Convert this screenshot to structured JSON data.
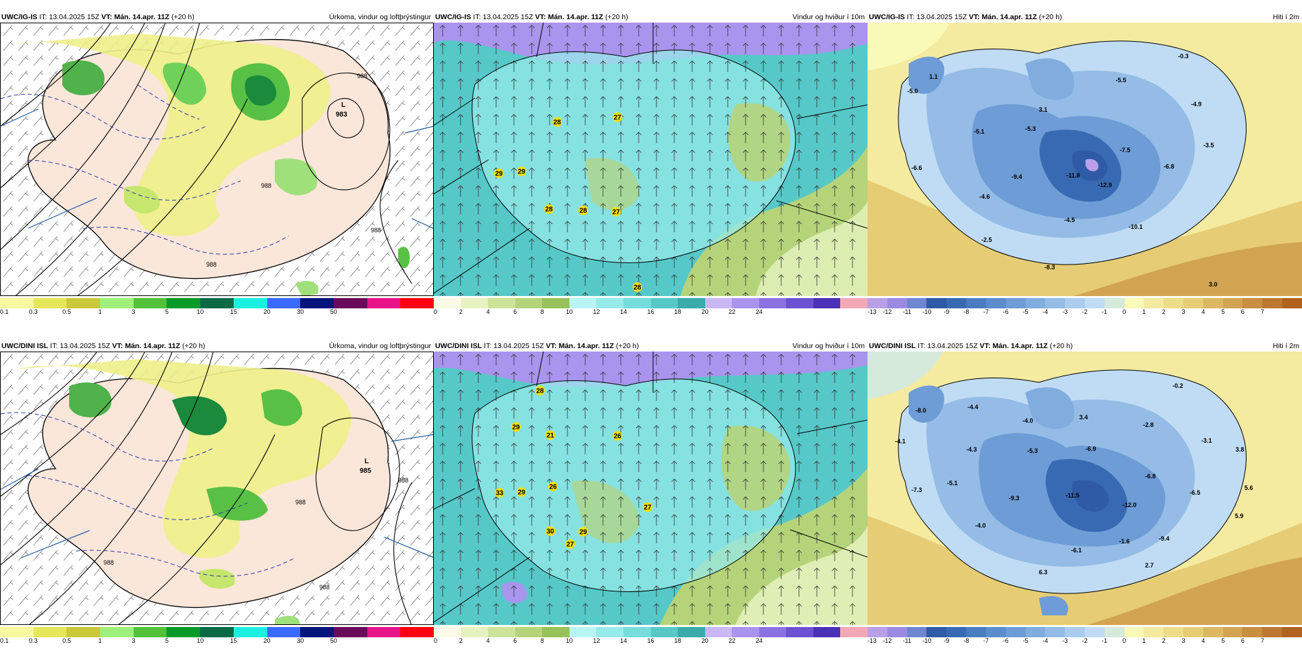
{
  "precip_panel_title": "Úrkoma, vindur og loftþrýstingur",
  "wind_panel_title": "Vindur og hviður í 10m",
  "temp_panel_title": "Hiti í 2m",
  "issue_prefix": "IT:",
  "issue_time": "13.04.2025 15Z",
  "valid_prefix": "VT:",
  "valid_time": "Mán. 14.apr. 11Z",
  "lead": "(+20 h)",
  "rows": [
    {
      "model": "UWC/IG-IS",
      "low": {
        "letter": "L",
        "value": "983"
      },
      "isobars": [
        "988",
        "988",
        "988",
        "988"
      ],
      "gusts": [
        "28",
        "27",
        "29",
        "29",
        "28",
        "28",
        "27",
        "28"
      ],
      "temps": [
        "1.1",
        "-5.0",
        "-5.5",
        "-0.3",
        "3.1",
        "-4.9",
        "-5.3",
        "-5.1",
        "-3.5",
        "-7.5",
        "-6.6",
        "-9.4",
        "-11.8",
        "-12.9",
        "-6.8",
        "-4.6",
        "-4.5",
        "-10.1",
        "-2.5",
        "-8.3",
        "3.0"
      ]
    },
    {
      "model": "UWC/DINI ISL",
      "low": {
        "letter": "L",
        "value": "985"
      },
      "isobars": [
        "988",
        "988",
        "988",
        "988"
      ],
      "gusts": [
        "28",
        "29",
        "21",
        "26",
        "33",
        "29",
        "26",
        "27",
        "30",
        "29",
        "27"
      ],
      "temps": [
        "-0.2",
        "-8.0",
        "-4.4",
        "-4.1",
        "-4.3",
        "-4.0",
        "3.4",
        "-2.8",
        "-5.3",
        "-6.9",
        "-3.1",
        "3.8",
        "-6.8",
        "-5.1",
        "-7.3",
        "-9.3",
        "-11.5",
        "-12.0",
        "-6.5",
        "5.6",
        "5.9",
        "-4.0",
        "-1.6",
        "-9.4",
        "-6.1",
        "2.7",
        "6.3"
      ]
    }
  ],
  "precip_colorbar": {
    "colors": [
      "#f8f8a0",
      "#e6e65a",
      "#c9c93a",
      "#9ef07a",
      "#52c23a",
      "#0a9a2a",
      "#0a6a46",
      "#1af0e0",
      "#3a6aff",
      "#06157c",
      "#6a0a5a",
      "#e8148a",
      "#ff0010"
    ],
    "ticks": [
      "0.1",
      "0.3",
      "0.5",
      "1",
      "3",
      "5",
      "10",
      "15",
      "20",
      "30",
      "50"
    ]
  },
  "wind_colorbar": {
    "colors": [
      "#fafae6",
      "#e6f2c0",
      "#cde39a",
      "#b5d47a",
      "#96c25a",
      "#b8f6f6",
      "#97eaea",
      "#76dcdc",
      "#56c8c8",
      "#3aaaaa",
      "#cab8f6",
      "#a994ee",
      "#8a72e2",
      "#6a52d2",
      "#4a32b6",
      "#f3a8b5"
    ],
    "ticks": [
      "0",
      "2",
      "4",
      "6",
      "8",
      "10",
      "12",
      "14",
      "16",
      "18",
      "20",
      "22",
      "24"
    ]
  },
  "temp_colorbar": {
    "colors": [
      "#b89fe6",
      "#9b8ae0",
      "#6f86d0",
      "#2f5aa6",
      "#386ab4",
      "#4a7cc2",
      "#5b8ccc",
      "#6d9cd6",
      "#80acde",
      "#94bce6",
      "#aaccee",
      "#c0dcf4",
      "#d6eadc",
      "#fafab8",
      "#f4eaa0",
      "#eedc88",
      "#e6cc74",
      "#dcb862",
      "#d2a452",
      "#c88e42",
      "#bc7830",
      "#b0621e"
    ],
    "ticks": [
      "-13",
      "-12",
      "-11",
      "-10",
      "-9",
      "-8",
      "-7",
      "-6",
      "-5",
      "-4",
      "-3",
      "-2",
      "-1",
      "0",
      "1",
      "2",
      "3",
      "4",
      "5",
      "6",
      "7"
    ]
  }
}
